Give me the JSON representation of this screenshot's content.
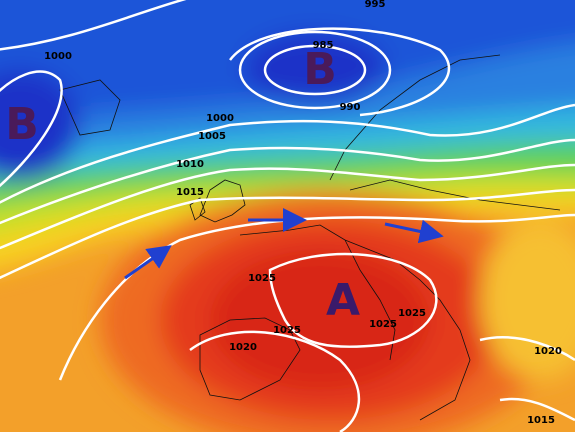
{
  "isobar_labels": [
    "995",
    "1000",
    "985",
    "990",
    "1000",
    "1005",
    "1010",
    "1015",
    "1025",
    "1025",
    "1025",
    "1025",
    "1020",
    "1020",
    "1015"
  ],
  "pressure_centers": [
    "B",
    "B",
    "A"
  ]
}
